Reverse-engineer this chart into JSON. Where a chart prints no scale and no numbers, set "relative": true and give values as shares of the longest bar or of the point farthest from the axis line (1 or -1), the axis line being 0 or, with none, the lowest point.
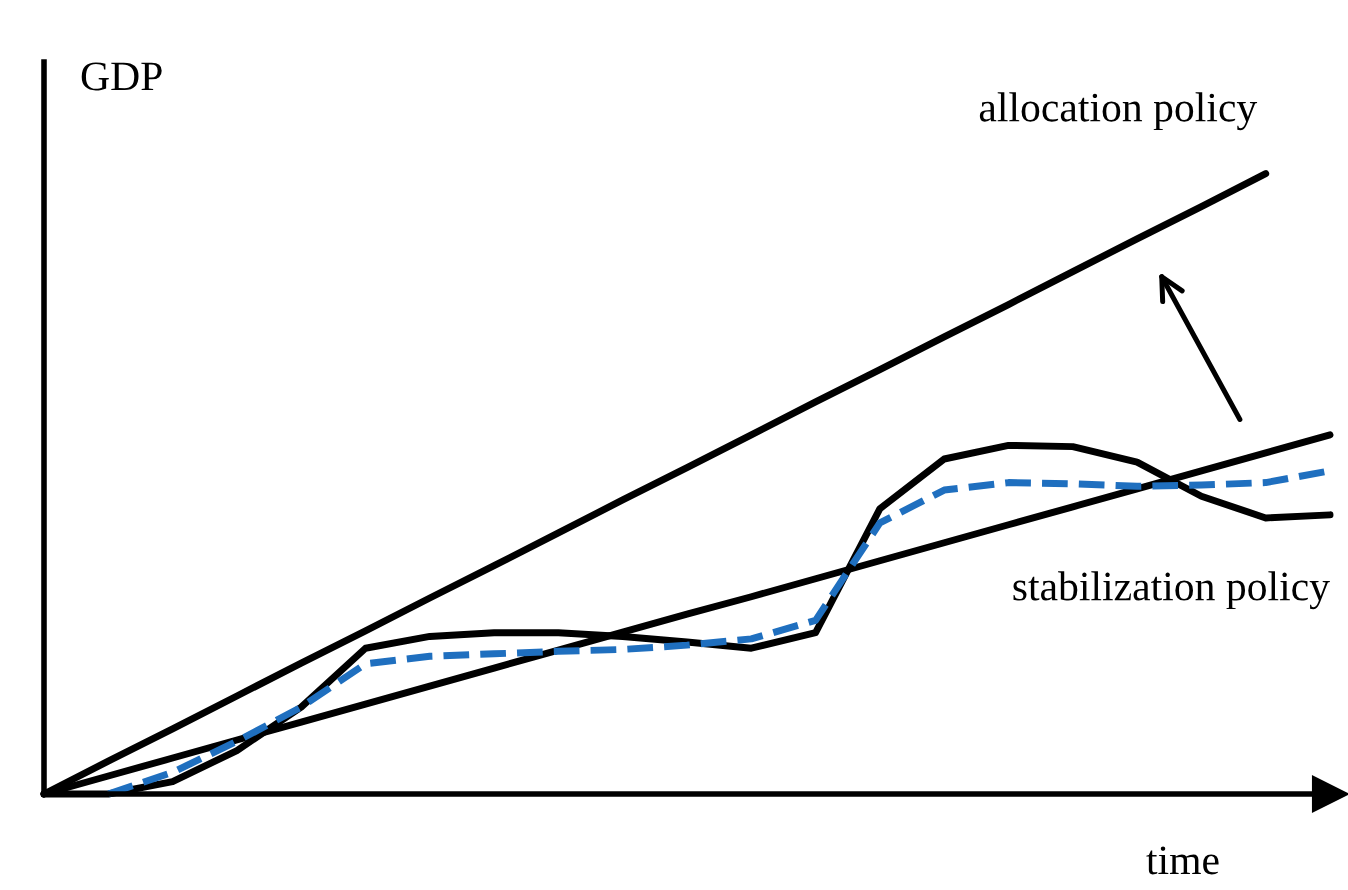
{
  "chart_data": {
    "type": "line",
    "relative": true,
    "xlabel": "time",
    "ylabel": "GDP",
    "categories": [
      null,
      null,
      null,
      null,
      null,
      null,
      null,
      null,
      null,
      null,
      null,
      null,
      null,
      null,
      null,
      null,
      null,
      null,
      null,
      null,
      null
    ],
    "series": [
      {
        "name": "allocation policy",
        "color": "#000000",
        "line_style": "solid",
        "values": [
          0,
          0.053,
          0.105,
          0.158,
          0.211,
          0.263,
          0.316,
          0.368,
          0.421,
          0.474,
          0.526,
          0.579,
          0.632,
          0.684,
          0.737,
          0.789,
          0.842,
          0.895,
          0.947,
          1.0,
          null
        ]
      },
      {
        "name": "stabilization policy",
        "color": "#000000",
        "line_style": "solid",
        "values": [
          0,
          0.029,
          0.058,
          0.087,
          0.116,
          0.145,
          0.174,
          0.203,
          0.232,
          0.261,
          0.29,
          0.318,
          0.347,
          0.376,
          0.405,
          0.434,
          0.463,
          0.492,
          0.521,
          0.55,
          0.579
        ]
      },
      {
        "color": "#000000",
        "line_style": "solid",
        "values": [
          0,
          0,
          0.02,
          0.07,
          0.14,
          0.235,
          0.254,
          0.26,
          0.26,
          0.254,
          0.245,
          0.235,
          0.26,
          0.46,
          0.54,
          0.562,
          0.56,
          0.535,
          0.48,
          0.445,
          0.45
        ]
      },
      {
        "color": "#1f6fbf",
        "line_style": "dashed",
        "values": [
          null,
          0,
          0.035,
          0.085,
          0.14,
          0.21,
          0.222,
          0.226,
          0.23,
          0.233,
          0.24,
          0.25,
          0.28,
          0.437,
          0.49,
          0.502,
          0.5,
          0.496,
          0.498,
          0.502,
          0.521
        ]
      }
    ]
  }
}
